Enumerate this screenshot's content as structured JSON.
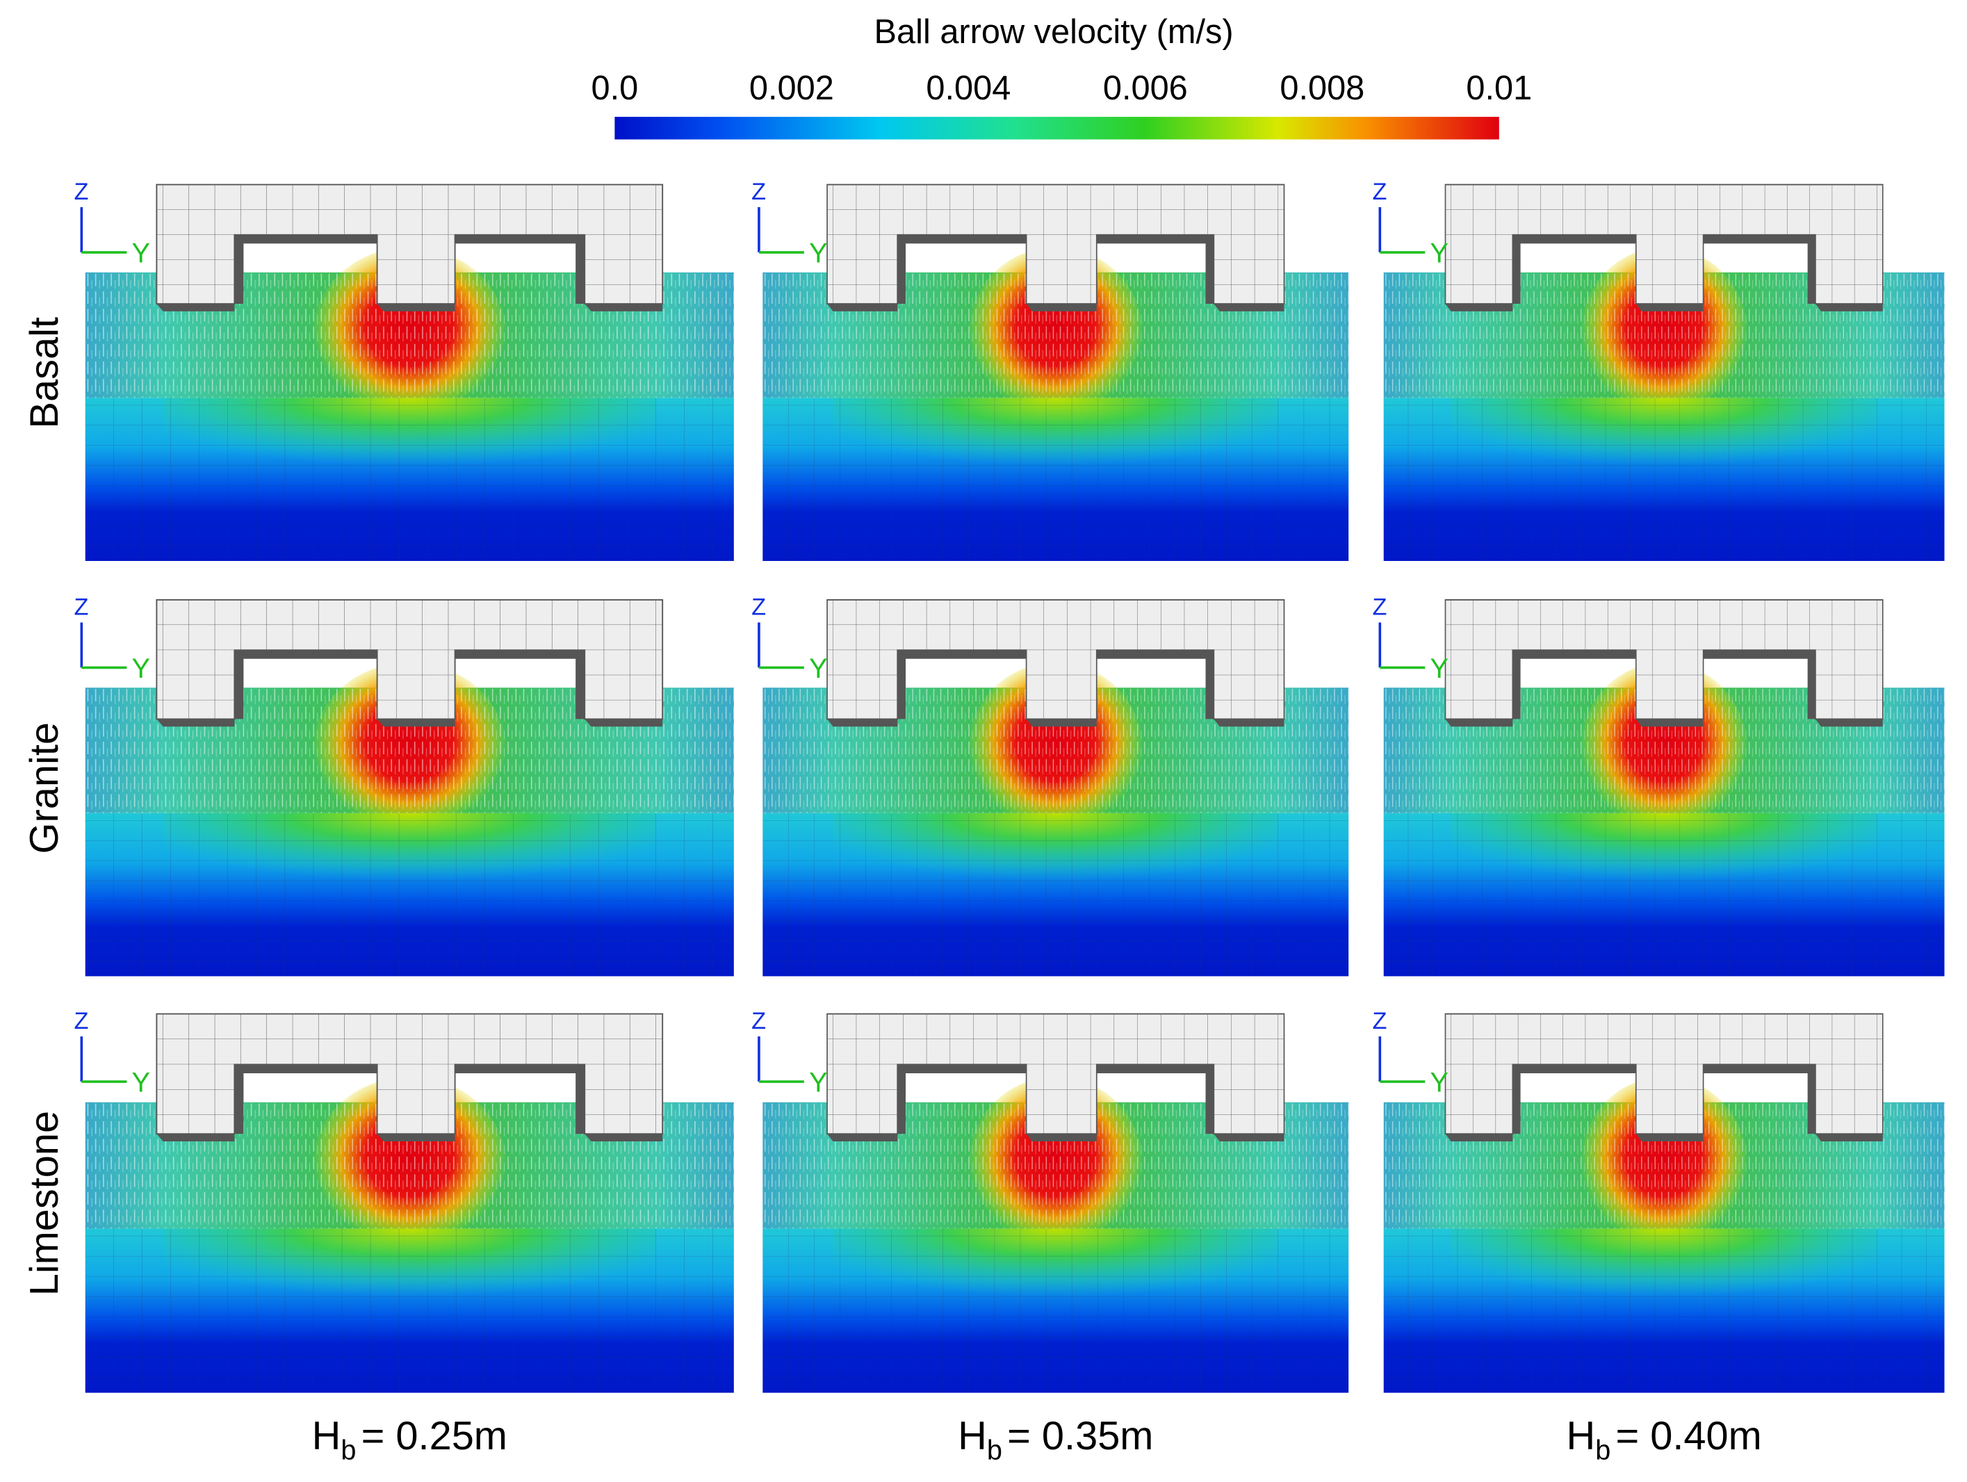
{
  "colorbar": {
    "title": "Ball arrow velocity (m/s)",
    "lim": [
      0,
      0.01
    ],
    "ticks": [
      {
        "value": 0,
        "label": "0.0"
      },
      0.002,
      0.004,
      0.006,
      0.008,
      0.01
    ]
  },
  "axes": {
    "vertical": "Z",
    "horizontal": "Y"
  },
  "rows": [
    "Basalt",
    "Granite",
    "Limestone"
  ],
  "columns": [
    {
      "symbol": "H",
      "subscript": "b",
      "text": "= 0.25m"
    },
    {
      "symbol": "H",
      "subscript": "b",
      "text": "= 0.35m"
    },
    {
      "symbol": "H",
      "subscript": "b",
      "text": "= 0.40m"
    }
  ]
}
